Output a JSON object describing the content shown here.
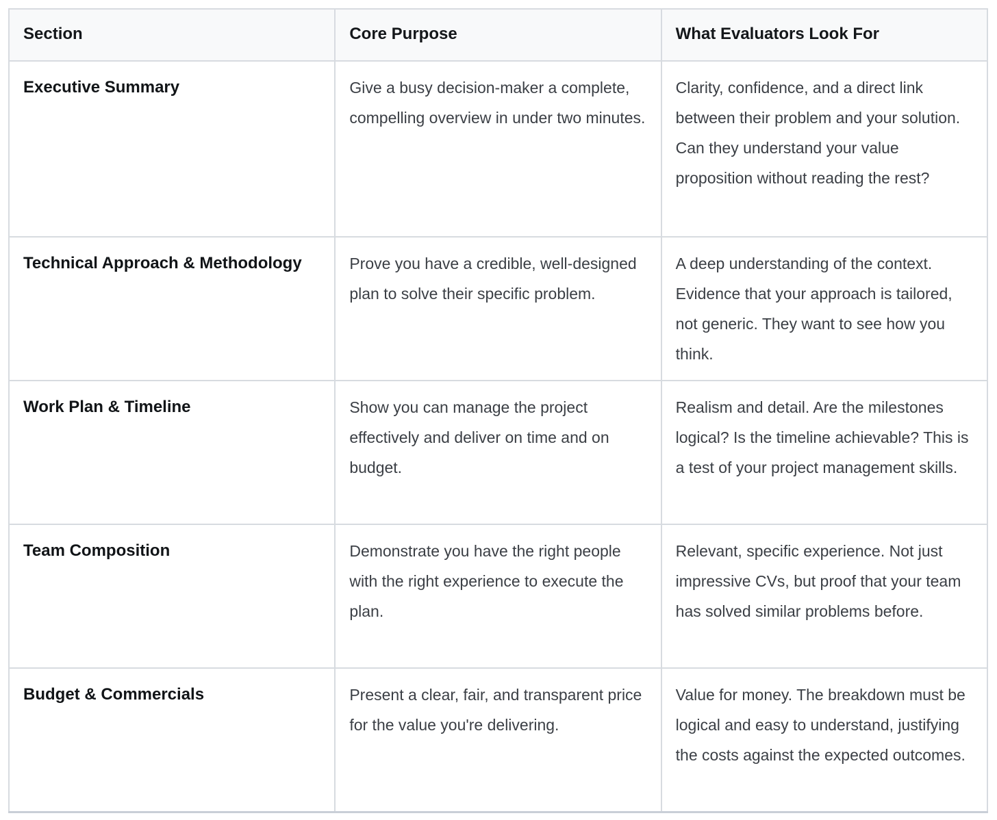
{
  "table": {
    "columns": [
      "Section",
      "Core Purpose",
      "What Evaluators Look For"
    ],
    "rows": [
      {
        "section": "Executive Summary",
        "purpose": "Give a busy decision-maker a complete, compelling overview in under two minutes.",
        "evaluators": "Clarity, confidence, and a direct link between their problem and your solution. Can they understand your value proposition without reading the rest?"
      },
      {
        "section": "Technical Approach & Methodology",
        "purpose": "Prove you have a credible, well-designed plan to solve their specific problem.",
        "evaluators": "A deep understanding of the context. Evidence that your approach is tailored, not generic. They want to see how you think."
      },
      {
        "section": "Work Plan & Timeline",
        "purpose": "Show you can manage the project effectively and deliver on time and on budget.",
        "evaluators": "Realism and detail. Are the milestones logical? Is the timeline achievable? This is a test of your project management skills."
      },
      {
        "section": "Team Composition",
        "purpose": "Demonstrate you have the right people with the right experience to execute the plan.",
        "evaluators": "Relevant, specific experience. Not just impressive CVs, but proof that your team has solved similar problems before."
      },
      {
        "section": "Budget & Commercials",
        "purpose": "Present a clear, fair, and transparent price for the value you're delivering.",
        "evaluators": "Value for money. The breakdown must be logical and easy to understand, justifying the costs against the expected outcomes."
      }
    ]
  },
  "colors": {
    "header_background": "#f8f9fa",
    "body_background": "#ffffff",
    "border": "#d7dbe0",
    "outer_border": "#d3d8de",
    "header_text": "#14171a",
    "section_text": "#111417",
    "body_text": "#3b3f45"
  }
}
